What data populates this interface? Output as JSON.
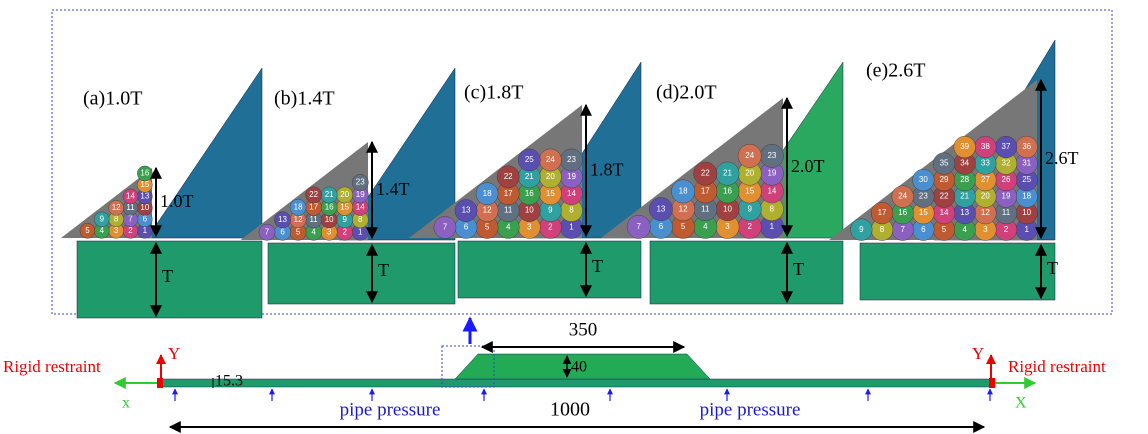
{
  "panels": [
    {
      "label": "(a)1.0T",
      "height_label": "1.0T",
      "base_label": "T",
      "beads": [
        1,
        2,
        3,
        4,
        5,
        6,
        7,
        8,
        9,
        10,
        11,
        12,
        13,
        14,
        15,
        16
      ]
    },
    {
      "label": "(b)1.4T",
      "height_label": "1.4T",
      "base_label": "T",
      "beads": [
        1,
        2,
        3,
        4,
        5,
        6,
        7,
        8,
        9,
        10,
        11,
        12,
        13,
        14,
        15,
        16,
        17,
        18,
        19,
        20,
        21,
        22,
        23
      ]
    },
    {
      "label": "(c)1.8T",
      "height_label": "1.8T",
      "base_label": "T",
      "beads": [
        1,
        2,
        3,
        4,
        5,
        6,
        7,
        8,
        9,
        10,
        11,
        12,
        13,
        14,
        15,
        16,
        17,
        18,
        19,
        20,
        21,
        22,
        23,
        24,
        25
      ]
    },
    {
      "label": "(d)2.0T",
      "height_label": "2.0T",
      "base_label": "T",
      "beads": [
        1,
        2,
        3,
        4,
        5,
        6,
        7,
        8,
        9,
        10,
        11,
        12,
        13,
        14,
        15,
        16,
        17,
        18,
        19,
        20,
        21,
        22,
        23,
        24
      ]
    },
    {
      "label": "(e)2.6T",
      "height_label": "2.6T",
      "base_label": "T",
      "beads": [
        1,
        2,
        3,
        4,
        5,
        6,
        7,
        8,
        9,
        10,
        11,
        12,
        13,
        14,
        15,
        16,
        17,
        18,
        19,
        20,
        21,
        22,
        23,
        24,
        25,
        26,
        27,
        28,
        29,
        30,
        31,
        32,
        33,
        34,
        35,
        36,
        37,
        38,
        39
      ]
    }
  ],
  "model": {
    "left_restraint": "Rigid restraint",
    "right_restraint": "Rigid restraint",
    "left_y": "Y",
    "right_y": "Y",
    "left_x": "x",
    "right_x": "X",
    "thickness": "15.3",
    "weld_width": "350",
    "weld_height": "40",
    "length": "1000",
    "pressure_left": "pipe pressure",
    "pressure_right": "pipe pressure"
  }
}
